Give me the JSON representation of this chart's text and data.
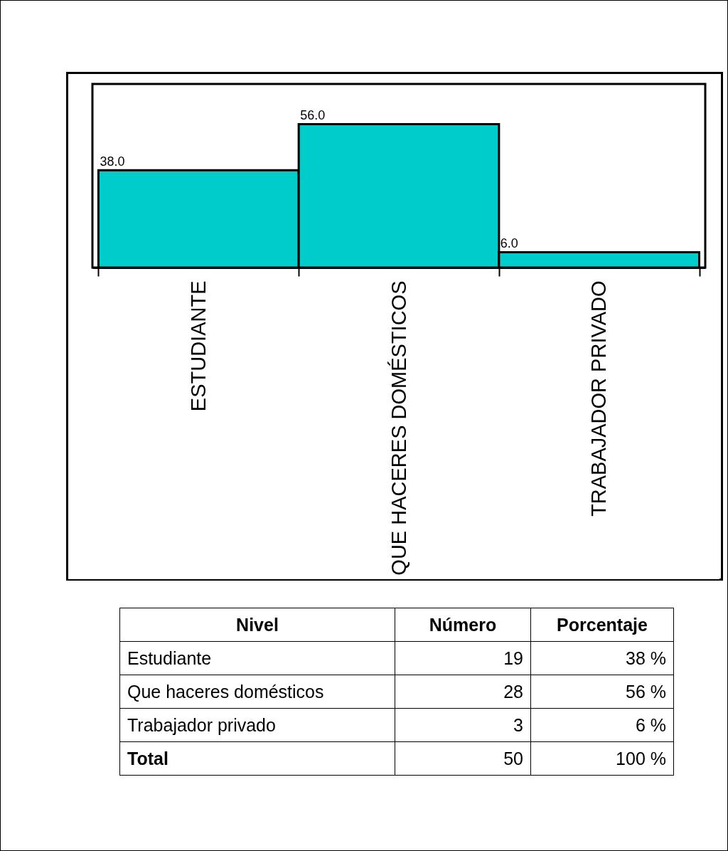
{
  "chart_data": [
    {
      "type": "bar",
      "categories": [
        "ESTUDIANTE",
        "QUE HACERES DOMÉSTICOS",
        "TRABAJADOR PRIVADO"
      ],
      "values": [
        38.0,
        56.0,
        6.0
      ],
      "value_labels": [
        "38.0",
        "56.0",
        "6.0"
      ],
      "color": "#00cccc"
    },
    {
      "type": "other",
      "data_labels": true,
      "xlabel": "Nivel",
      "categories": [
        "Estudiante",
        "Que haceres domésticos",
        "Trabajador privado"
      ],
      "series": [
        {
          "name": "Número",
          "values": [
            19,
            28,
            3
          ]
        },
        {
          "name": "Porcentaje",
          "values": [
            38,
            56,
            6
          ],
          "value_labels": [
            "38 %",
            "56 %",
            "6 %"
          ]
        }
      ],
      "totals": [
        "50",
        "100 %"
      ],
      "annotations": [
        "Total"
      ]
    }
  ]
}
